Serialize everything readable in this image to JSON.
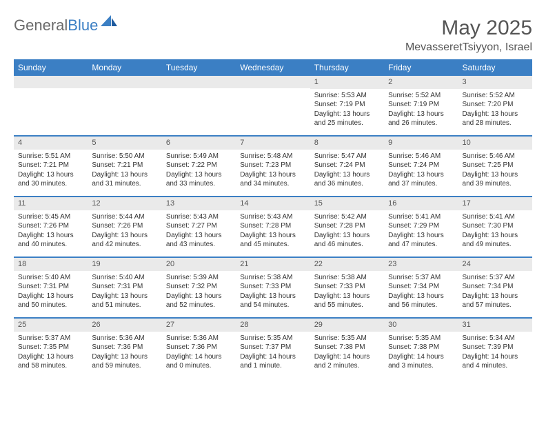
{
  "logo": {
    "text1": "General",
    "text2": "Blue"
  },
  "title": "May 2025",
  "location": "MevasseretTsiyyon, Israel",
  "colors": {
    "accent": "#3b7fc4",
    "logo_gray": "#6a6a6a",
    "daynum_bg": "#eaeaea",
    "text": "#333333",
    "title_gray": "#555555"
  },
  "weekdays": [
    "Sunday",
    "Monday",
    "Tuesday",
    "Wednesday",
    "Thursday",
    "Friday",
    "Saturday"
  ],
  "weeks": [
    [
      {
        "n": "",
        "sr": "",
        "ss": "",
        "dl": ""
      },
      {
        "n": "",
        "sr": "",
        "ss": "",
        "dl": ""
      },
      {
        "n": "",
        "sr": "",
        "ss": "",
        "dl": ""
      },
      {
        "n": "",
        "sr": "",
        "ss": "",
        "dl": ""
      },
      {
        "n": "1",
        "sr": "Sunrise: 5:53 AM",
        "ss": "Sunset: 7:19 PM",
        "dl": "Daylight: 13 hours and 25 minutes."
      },
      {
        "n": "2",
        "sr": "Sunrise: 5:52 AM",
        "ss": "Sunset: 7:19 PM",
        "dl": "Daylight: 13 hours and 26 minutes."
      },
      {
        "n": "3",
        "sr": "Sunrise: 5:52 AM",
        "ss": "Sunset: 7:20 PM",
        "dl": "Daylight: 13 hours and 28 minutes."
      }
    ],
    [
      {
        "n": "4",
        "sr": "Sunrise: 5:51 AM",
        "ss": "Sunset: 7:21 PM",
        "dl": "Daylight: 13 hours and 30 minutes."
      },
      {
        "n": "5",
        "sr": "Sunrise: 5:50 AM",
        "ss": "Sunset: 7:21 PM",
        "dl": "Daylight: 13 hours and 31 minutes."
      },
      {
        "n": "6",
        "sr": "Sunrise: 5:49 AM",
        "ss": "Sunset: 7:22 PM",
        "dl": "Daylight: 13 hours and 33 minutes."
      },
      {
        "n": "7",
        "sr": "Sunrise: 5:48 AM",
        "ss": "Sunset: 7:23 PM",
        "dl": "Daylight: 13 hours and 34 minutes."
      },
      {
        "n": "8",
        "sr": "Sunrise: 5:47 AM",
        "ss": "Sunset: 7:24 PM",
        "dl": "Daylight: 13 hours and 36 minutes."
      },
      {
        "n": "9",
        "sr": "Sunrise: 5:46 AM",
        "ss": "Sunset: 7:24 PM",
        "dl": "Daylight: 13 hours and 37 minutes."
      },
      {
        "n": "10",
        "sr": "Sunrise: 5:46 AM",
        "ss": "Sunset: 7:25 PM",
        "dl": "Daylight: 13 hours and 39 minutes."
      }
    ],
    [
      {
        "n": "11",
        "sr": "Sunrise: 5:45 AM",
        "ss": "Sunset: 7:26 PM",
        "dl": "Daylight: 13 hours and 40 minutes."
      },
      {
        "n": "12",
        "sr": "Sunrise: 5:44 AM",
        "ss": "Sunset: 7:26 PM",
        "dl": "Daylight: 13 hours and 42 minutes."
      },
      {
        "n": "13",
        "sr": "Sunrise: 5:43 AM",
        "ss": "Sunset: 7:27 PM",
        "dl": "Daylight: 13 hours and 43 minutes."
      },
      {
        "n": "14",
        "sr": "Sunrise: 5:43 AM",
        "ss": "Sunset: 7:28 PM",
        "dl": "Daylight: 13 hours and 45 minutes."
      },
      {
        "n": "15",
        "sr": "Sunrise: 5:42 AM",
        "ss": "Sunset: 7:28 PM",
        "dl": "Daylight: 13 hours and 46 minutes."
      },
      {
        "n": "16",
        "sr": "Sunrise: 5:41 AM",
        "ss": "Sunset: 7:29 PM",
        "dl": "Daylight: 13 hours and 47 minutes."
      },
      {
        "n": "17",
        "sr": "Sunrise: 5:41 AM",
        "ss": "Sunset: 7:30 PM",
        "dl": "Daylight: 13 hours and 49 minutes."
      }
    ],
    [
      {
        "n": "18",
        "sr": "Sunrise: 5:40 AM",
        "ss": "Sunset: 7:31 PM",
        "dl": "Daylight: 13 hours and 50 minutes."
      },
      {
        "n": "19",
        "sr": "Sunrise: 5:40 AM",
        "ss": "Sunset: 7:31 PM",
        "dl": "Daylight: 13 hours and 51 minutes."
      },
      {
        "n": "20",
        "sr": "Sunrise: 5:39 AM",
        "ss": "Sunset: 7:32 PM",
        "dl": "Daylight: 13 hours and 52 minutes."
      },
      {
        "n": "21",
        "sr": "Sunrise: 5:38 AM",
        "ss": "Sunset: 7:33 PM",
        "dl": "Daylight: 13 hours and 54 minutes."
      },
      {
        "n": "22",
        "sr": "Sunrise: 5:38 AM",
        "ss": "Sunset: 7:33 PM",
        "dl": "Daylight: 13 hours and 55 minutes."
      },
      {
        "n": "23",
        "sr": "Sunrise: 5:37 AM",
        "ss": "Sunset: 7:34 PM",
        "dl": "Daylight: 13 hours and 56 minutes."
      },
      {
        "n": "24",
        "sr": "Sunrise: 5:37 AM",
        "ss": "Sunset: 7:34 PM",
        "dl": "Daylight: 13 hours and 57 minutes."
      }
    ],
    [
      {
        "n": "25",
        "sr": "Sunrise: 5:37 AM",
        "ss": "Sunset: 7:35 PM",
        "dl": "Daylight: 13 hours and 58 minutes."
      },
      {
        "n": "26",
        "sr": "Sunrise: 5:36 AM",
        "ss": "Sunset: 7:36 PM",
        "dl": "Daylight: 13 hours and 59 minutes."
      },
      {
        "n": "27",
        "sr": "Sunrise: 5:36 AM",
        "ss": "Sunset: 7:36 PM",
        "dl": "Daylight: 14 hours and 0 minutes."
      },
      {
        "n": "28",
        "sr": "Sunrise: 5:35 AM",
        "ss": "Sunset: 7:37 PM",
        "dl": "Daylight: 14 hours and 1 minute."
      },
      {
        "n": "29",
        "sr": "Sunrise: 5:35 AM",
        "ss": "Sunset: 7:38 PM",
        "dl": "Daylight: 14 hours and 2 minutes."
      },
      {
        "n": "30",
        "sr": "Sunrise: 5:35 AM",
        "ss": "Sunset: 7:38 PM",
        "dl": "Daylight: 14 hours and 3 minutes."
      },
      {
        "n": "31",
        "sr": "Sunrise: 5:34 AM",
        "ss": "Sunset: 7:39 PM",
        "dl": "Daylight: 14 hours and 4 minutes."
      }
    ]
  ]
}
